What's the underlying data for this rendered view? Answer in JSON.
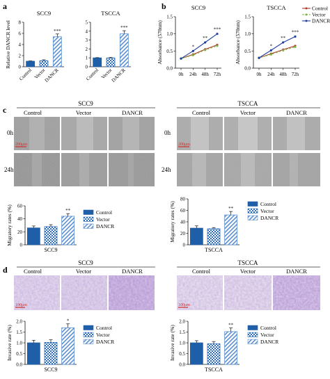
{
  "panel_letters": {
    "a": "a",
    "b": "b",
    "c": "c",
    "d": "d"
  },
  "micrographs": {
    "scale_bar_c": "200μm",
    "scale_bar_d": "100μm",
    "rows_c": [
      "0h",
      "24h"
    ],
    "columns": [
      "Control",
      "Vector",
      "DANCR"
    ],
    "groups": [
      "SCC9",
      "TSCCA"
    ]
  },
  "legend_labels": [
    "Control",
    "Vector",
    "DANCR"
  ],
  "colors": {
    "control": "#1f5fa8",
    "vector_check": "#2f6fb8",
    "dancr_stripe": "#5b8fd0",
    "line_control": "#b03a2e",
    "line_vector": "#7cb342",
    "line_dancr": "#1e3fa0",
    "significance": "#111111"
  },
  "chart_data": [
    {
      "panel": "a",
      "type": "bar",
      "title": "SCC9",
      "ylabel": "Relative DANCR level",
      "categories": [
        "Control",
        "Vector",
        "DANCR"
      ],
      "values": [
        1.0,
        1.1,
        5.4
      ],
      "errors": [
        0.05,
        0.15,
        0.5
      ],
      "ylim": [
        0,
        8
      ],
      "yticks": [
        "0",
        "2",
        "4",
        "6",
        "8"
      ],
      "significance": [
        "",
        "",
        "***"
      ]
    },
    {
      "panel": "a",
      "type": "bar",
      "title": "TSCCA",
      "ylabel": "",
      "categories": [
        "Control",
        "Vector",
        "DANCR"
      ],
      "values": [
        1.0,
        1.0,
        3.7
      ],
      "errors": [
        0.03,
        0.05,
        0.35
      ],
      "ylim": [
        0,
        5
      ],
      "yticks": [
        "0",
        "1",
        "2",
        "3",
        "4",
        "5"
      ],
      "significance": [
        "",
        "",
        "***"
      ]
    },
    {
      "panel": "b",
      "type": "line",
      "title": "SCC9",
      "ylabel": "Absorbance (570nm)",
      "x": [
        "0h",
        "24h",
        "48h",
        "72h"
      ],
      "ylim": [
        0,
        1.5
      ],
      "yticks": [
        "0.0",
        "0.5",
        "1.0",
        "1.5"
      ],
      "series": [
        {
          "name": "Control",
          "values": [
            0.28,
            0.4,
            0.55,
            0.68
          ]
        },
        {
          "name": "Vector",
          "values": [
            0.28,
            0.38,
            0.53,
            0.65
          ]
        },
        {
          "name": "DANCR",
          "values": [
            0.28,
            0.5,
            0.75,
            1.0
          ]
        }
      ],
      "significance": [
        "",
        "*",
        "**",
        "***"
      ]
    },
    {
      "panel": "b",
      "type": "line",
      "title": "TSCCA",
      "ylabel": "Absorbance (570nm)",
      "x": [
        "0h",
        "24h",
        "48h",
        "72h"
      ],
      "ylim": [
        0,
        1.5
      ],
      "yticks": [
        "0.0",
        "0.5",
        "1.0",
        "1.5"
      ],
      "series": [
        {
          "name": "Control",
          "values": [
            0.3,
            0.42,
            0.54,
            0.65
          ]
        },
        {
          "name": "Vector",
          "values": [
            0.3,
            0.4,
            0.52,
            0.62
          ]
        },
        {
          "name": "DANCR",
          "values": [
            0.3,
            0.52,
            0.75,
            0.92
          ]
        }
      ],
      "significance": [
        "",
        "*",
        "**",
        "***"
      ]
    },
    {
      "panel": "c",
      "type": "bar",
      "title": "",
      "xlabel": "SCC9",
      "ylabel": "Migratory rates (%)",
      "categories": [
        "Control",
        "Vector",
        "DANCR"
      ],
      "values": [
        26,
        28,
        44
      ],
      "errors": [
        3,
        3,
        4
      ],
      "ylim": [
        0,
        60
      ],
      "yticks": [
        "0",
        "20",
        "40",
        "60"
      ],
      "significance": [
        "",
        "",
        "**"
      ]
    },
    {
      "panel": "c",
      "type": "bar",
      "title": "",
      "xlabel": "TSCCA",
      "ylabel": "Migratory rates (%)",
      "categories": [
        "Control",
        "Vector",
        "DANCR"
      ],
      "values": [
        29,
        28,
        52
      ],
      "errors": [
        4,
        2,
        6
      ],
      "ylim": [
        0,
        80
      ],
      "yticks": [
        "0",
        "20",
        "40",
        "60",
        "80"
      ],
      "significance": [
        "",
        "",
        "**"
      ]
    },
    {
      "panel": "d",
      "type": "bar",
      "title": "",
      "xlabel": "SCC9",
      "ylabel": "Invasive rate (%)",
      "categories": [
        "Control",
        "Vector",
        "DANCR"
      ],
      "values": [
        1.0,
        1.02,
        1.7
      ],
      "errors": [
        0.12,
        0.12,
        0.18
      ],
      "ylim": [
        0,
        2.0
      ],
      "yticks": [
        "0.0",
        "0.5",
        "1.0",
        "1.5",
        "2.0"
      ],
      "significance": [
        "",
        "",
        "*"
      ]
    },
    {
      "panel": "d",
      "type": "bar",
      "title": "",
      "xlabel": "TSCCA",
      "ylabel": "Invasive rate (%)",
      "categories": [
        "Control",
        "Vector",
        "DANCR"
      ],
      "values": [
        1.0,
        0.96,
        1.52
      ],
      "errors": [
        0.1,
        0.1,
        0.17
      ],
      "ylim": [
        0,
        2.0
      ],
      "yticks": [
        "0.0",
        "0.5",
        "1.0",
        "1.5",
        "2.0"
      ],
      "significance": [
        "",
        "",
        "**"
      ]
    }
  ]
}
